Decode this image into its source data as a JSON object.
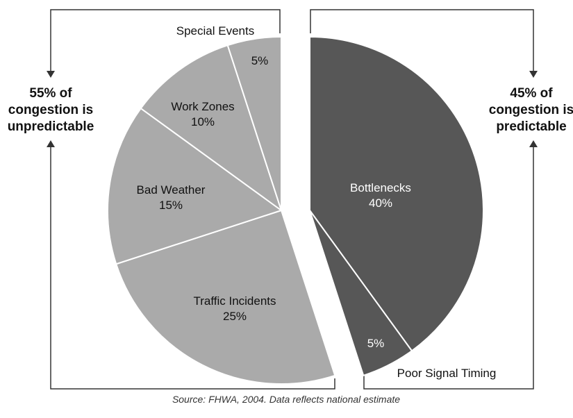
{
  "chart_data": {
    "type": "pie",
    "slices": [
      {
        "label": "Bottlenecks",
        "value": 40,
        "value_text": "40%",
        "color": "#575757",
        "group": "predictable"
      },
      {
        "label": "Poor Signal Timing",
        "value": 5,
        "value_text": "5%",
        "color": "#575757",
        "group": "predictable"
      },
      {
        "label": "Traffic Incidents",
        "value": 25,
        "value_text": "25%",
        "color": "#aaaaaa",
        "group": "unpredictable"
      },
      {
        "label": "Bad Weather",
        "value": 15,
        "value_text": "15%",
        "color": "#aaaaaa",
        "group": "unpredictable"
      },
      {
        "label": "Work Zones",
        "value": 10,
        "value_text": "10%",
        "color": "#aaaaaa",
        "group": "unpredictable"
      },
      {
        "label": "Special Events",
        "value": 5,
        "value_text": "5%",
        "color": "#aaaaaa",
        "group": "unpredictable"
      }
    ],
    "groups": {
      "unpredictable": {
        "lines": [
          "55% of",
          "congestion is",
          "unpredictable"
        ]
      },
      "predictable": {
        "lines": [
          "45% of",
          "congestion is",
          "predictable"
        ]
      }
    },
    "source": "Source: FHWA, 2004. Data reflects national estimate"
  }
}
